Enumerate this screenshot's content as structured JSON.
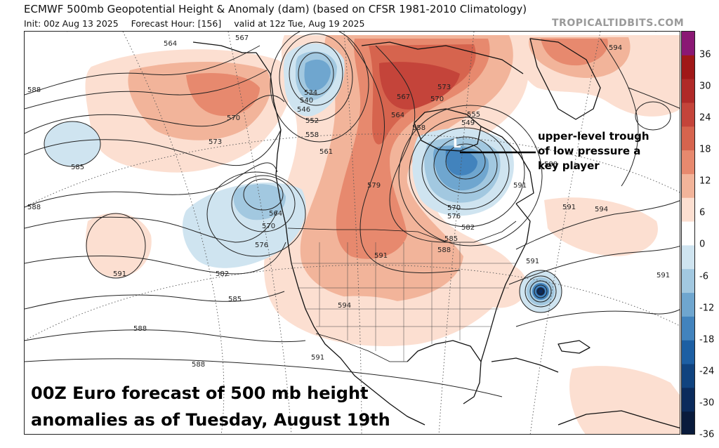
{
  "header": {
    "title": "ECMWF 500mb Geopotential Height & Anomaly (dam) (based on CFSR 1981-2010 Climatology)",
    "init": "Init: 00z Aug 13 2025",
    "forecast_hour": "Forecast Hour: [156]",
    "valid": "valid at 12z Tue, Aug 19 2025",
    "brand": "TROPICALTIDBITS.COM"
  },
  "colorbar": {
    "unit": "dam",
    "levels": [
      "36",
      "30",
      "24",
      "18",
      "12",
      "6",
      "0",
      "-6",
      "-12",
      "-18",
      "-24",
      "-30",
      "-36"
    ],
    "colors": [
      "#8a1874",
      "#a01818",
      "#b02a28",
      "#c4443a",
      "#d6644e",
      "#e7896e",
      "#f2b49a",
      "#fcdfd1",
      "#ffffff",
      "#cfe4f0",
      "#a2c8e0",
      "#6fa6cf",
      "#4283bd",
      "#1d5fa3",
      "#10437f",
      "#0b2b5c",
      "#091b3c"
    ]
  },
  "map": {
    "contour_labels": [
      "564",
      "567",
      "534",
      "540",
      "546",
      "552",
      "558",
      "561",
      "570",
      "573",
      "585",
      "588",
      "564",
      "570",
      "576",
      "582",
      "585",
      "588",
      "591",
      "567",
      "573",
      "570",
      "564",
      "558",
      "555",
      "549",
      "579",
      "570",
      "576",
      "582",
      "585",
      "588",
      "591",
      "594",
      "594",
      "591",
      "591",
      "594",
      "591",
      "588",
      "588",
      "588",
      "591",
      "591"
    ],
    "low_marker": "L",
    "land_color": "#ffffff",
    "ocean_color": "#ffffff"
  },
  "annotation": {
    "lines": [
      "upper-level trough",
      "of low pressure a",
      "key player"
    ]
  },
  "caption": {
    "lines": [
      "00Z Euro forecast of 500 mb height",
      "anomalies as of Tuesday, August 19th"
    ]
  }
}
